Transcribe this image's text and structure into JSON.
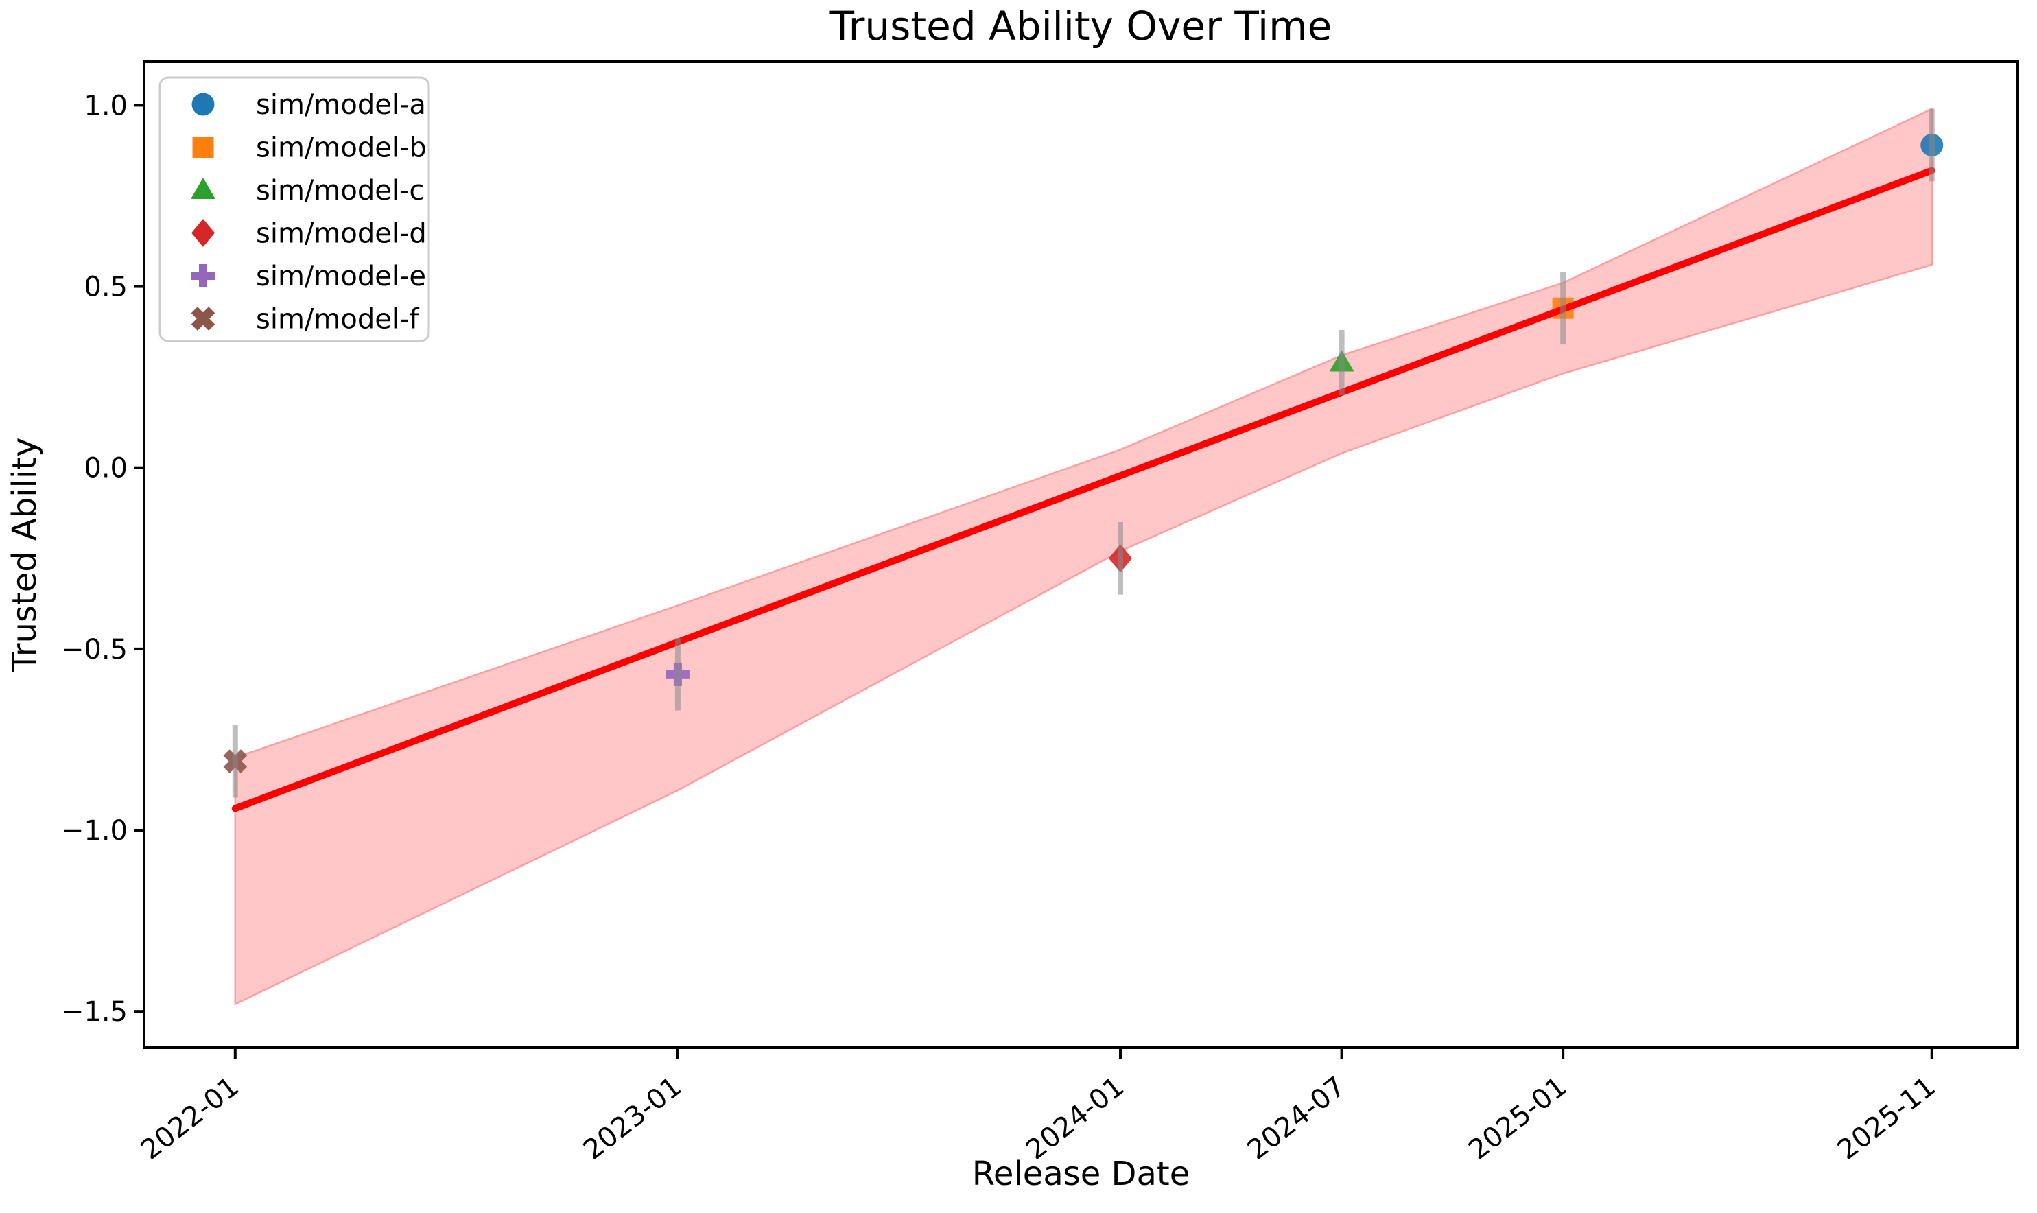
{
  "figure": {
    "title": "Trusted Ability Over Time"
  },
  "chart_data": {
    "type": "scatter",
    "title": "Trusted Ability Over Time",
    "xlabel": "Release Date",
    "ylabel": "Trusted Ability",
    "grid": false,
    "legend_position": "upper left",
    "x_axis": {
      "unit": "months since 2022-01",
      "tick_labels": [
        "2022-01",
        "2023-01",
        "2024-01",
        "2024-07",
        "2025-01",
        "2025-11"
      ],
      "tick_months": [
        0,
        12,
        24,
        30,
        36,
        46
      ],
      "range_months": [
        -2.47,
        48.33
      ],
      "label_rotation_deg": 38
    },
    "y_axis": {
      "ticks": [
        1.0,
        0.5,
        0.0,
        -0.5,
        -1.0,
        -1.5
      ],
      "tick_labels": [
        "1.0",
        "0.5",
        "0.0",
        "−0.5",
        "−1.0",
        "−1.5"
      ],
      "range": [
        -1.6,
        1.12
      ]
    },
    "error_bar_color": "#888888",
    "error_bar_opacity": 0.55,
    "series": [
      {
        "name": "sim/model-a",
        "marker": "circle",
        "color": "#1f77b4",
        "date": "2025-11",
        "x_month": 46,
        "y": 0.89,
        "err": 0.1
      },
      {
        "name": "sim/model-b",
        "marker": "square",
        "color": "#ff7f0e",
        "date": "2025-01",
        "x_month": 36,
        "y": 0.44,
        "err": 0.1
      },
      {
        "name": "sim/model-c",
        "marker": "triangle",
        "color": "#2ca02c",
        "date": "2024-07",
        "x_month": 30,
        "y": 0.29,
        "err": 0.09
      },
      {
        "name": "sim/model-d",
        "marker": "diamond",
        "color": "#d62728",
        "date": "2024-01",
        "x_month": 24,
        "y": -0.25,
        "err": 0.1
      },
      {
        "name": "sim/model-e",
        "marker": "plus",
        "color": "#9467bd",
        "date": "2023-01",
        "x_month": 12,
        "y": -0.57,
        "err": 0.1
      },
      {
        "name": "sim/model-f",
        "marker": "x",
        "color": "#8c564b",
        "date": "2022-01",
        "x_month": 0,
        "y": -0.81,
        "err": 0.1
      }
    ],
    "trend_line": {
      "color": "#ff0000",
      "points": [
        {
          "x_month": 0,
          "y": -0.94
        },
        {
          "x_month": 46,
          "y": 0.82
        }
      ]
    },
    "confidence_band": {
      "fill_color": "#ff0000",
      "fill_opacity": 0.22,
      "edge_color": "#ff9e9e",
      "top": [
        {
          "x_month": 0,
          "y": -0.8
        },
        {
          "x_month": 12,
          "y": -0.38
        },
        {
          "x_month": 24,
          "y": 0.05
        },
        {
          "x_month": 30,
          "y": 0.31
        },
        {
          "x_month": 36,
          "y": 0.51
        },
        {
          "x_month": 46,
          "y": 0.99
        }
      ],
      "bottom": [
        {
          "x_month": 0,
          "y": -1.48
        },
        {
          "x_month": 12,
          "y": -0.89
        },
        {
          "x_month": 24,
          "y": -0.23
        },
        {
          "x_month": 30,
          "y": 0.04
        },
        {
          "x_month": 36,
          "y": 0.26
        },
        {
          "x_month": 46,
          "y": 0.56
        }
      ]
    }
  }
}
